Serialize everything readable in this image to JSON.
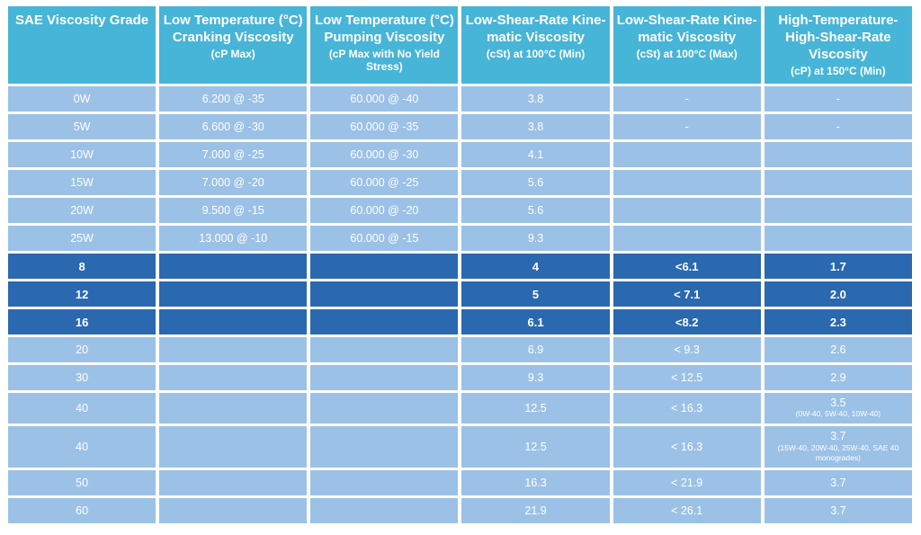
{
  "colors": {
    "header_bg": "#47b5d8",
    "light_row_bg": "#9cc1e7",
    "dark_row_bg": "#2a68b0",
    "grid_separator": "#ffffff",
    "text": "#ffffff"
  },
  "chart_data": {
    "type": "table",
    "columns": [
      {
        "label": "SAE Viscosity Grade",
        "sub": ""
      },
      {
        "label": "Low Temperature (°C)\nCranking Viscosity",
        "sub": "(cP Max)"
      },
      {
        "label": "Low Temperature (°C)\nPumping Viscosity",
        "sub": "(cP Max with No Yield\nStress)"
      },
      {
        "label": "Low-Shear-Rate Kine-\nmatic Viscosity",
        "sub": "(cSt) at 100°C (Min)"
      },
      {
        "label": "Low-Shear-Rate Kine-\nmatic Viscosity",
        "sub": "(cSt) at 100°C (Max)"
      },
      {
        "label": "High-Temperature-\nHigh-Shear-Rate\nViscosity",
        "sub": "(cP) at 150°C (Min)"
      }
    ],
    "rows": [
      {
        "grade": "0W",
        "cranking": "6.200 @ -35",
        "pumping": "60.000 @ -40",
        "kv100_min": "3.8",
        "kv100_max": "-",
        "hths": "-",
        "emphasis": false
      },
      {
        "grade": "5W",
        "cranking": "6.600 @ -30",
        "pumping": "60.000 @ -35",
        "kv100_min": "3.8",
        "kv100_max": "-",
        "hths": "-",
        "emphasis": false
      },
      {
        "grade": "10W",
        "cranking": "7.000 @ -25",
        "pumping": "60.000 @ -30",
        "kv100_min": "4.1",
        "kv100_max": "",
        "hths": "",
        "emphasis": false
      },
      {
        "grade": "15W",
        "cranking": "7.000 @ -20",
        "pumping": "60.000 @ -25",
        "kv100_min": "5.6",
        "kv100_max": "",
        "hths": "",
        "emphasis": false
      },
      {
        "grade": "20W",
        "cranking": "9.500 @ -15",
        "pumping": "60.000 @ -20",
        "kv100_min": "5.6",
        "kv100_max": "",
        "hths": "",
        "emphasis": false
      },
      {
        "grade": "25W",
        "cranking": "13.000 @ -10",
        "pumping": "60.000 @ -15",
        "kv100_min": "9.3",
        "kv100_max": "",
        "hths": "",
        "emphasis": false
      },
      {
        "grade": "8",
        "cranking": "",
        "pumping": "",
        "kv100_min": "4",
        "kv100_max": "<6.1",
        "hths": "1.7",
        "emphasis": true
      },
      {
        "grade": "12",
        "cranking": "",
        "pumping": "",
        "kv100_min": "5",
        "kv100_max": "< 7.1",
        "hths": "2.0",
        "emphasis": true
      },
      {
        "grade": "16",
        "cranking": "",
        "pumping": "",
        "kv100_min": "6.1",
        "kv100_max": "<8.2",
        "hths": "2.3",
        "emphasis": true
      },
      {
        "grade": "20",
        "cranking": "",
        "pumping": "",
        "kv100_min": "6.9",
        "kv100_max": "< 9.3",
        "hths": "2.6",
        "emphasis": false
      },
      {
        "grade": "30",
        "cranking": "",
        "pumping": "",
        "kv100_min": "9.3",
        "kv100_max": "< 12.5",
        "hths": "2.9",
        "emphasis": false
      },
      {
        "grade": "40",
        "cranking": "",
        "pumping": "",
        "kv100_min": "12.5",
        "kv100_max": "< 16.3",
        "hths": "3.5",
        "hths_note": "(0W-40, 5W-40, 10W-40)",
        "emphasis": false,
        "tall": "medium"
      },
      {
        "grade": "40",
        "cranking": "",
        "pumping": "",
        "kv100_min": "12.5",
        "kv100_max": "< 16.3",
        "hths": "3.7",
        "hths_note": "(15W-40, 20W-40, 25W-40, SAE 40 monogrades)",
        "emphasis": false,
        "tall": "large"
      },
      {
        "grade": "50",
        "cranking": "",
        "pumping": "",
        "kv100_min": "16.3",
        "kv100_max": "< 21.9",
        "hths": "3.7",
        "emphasis": false
      },
      {
        "grade": "60",
        "cranking": "",
        "pumping": "",
        "kv100_min": "21.9",
        "kv100_max": "< 26.1",
        "hths": "3.7",
        "emphasis": false
      }
    ]
  }
}
